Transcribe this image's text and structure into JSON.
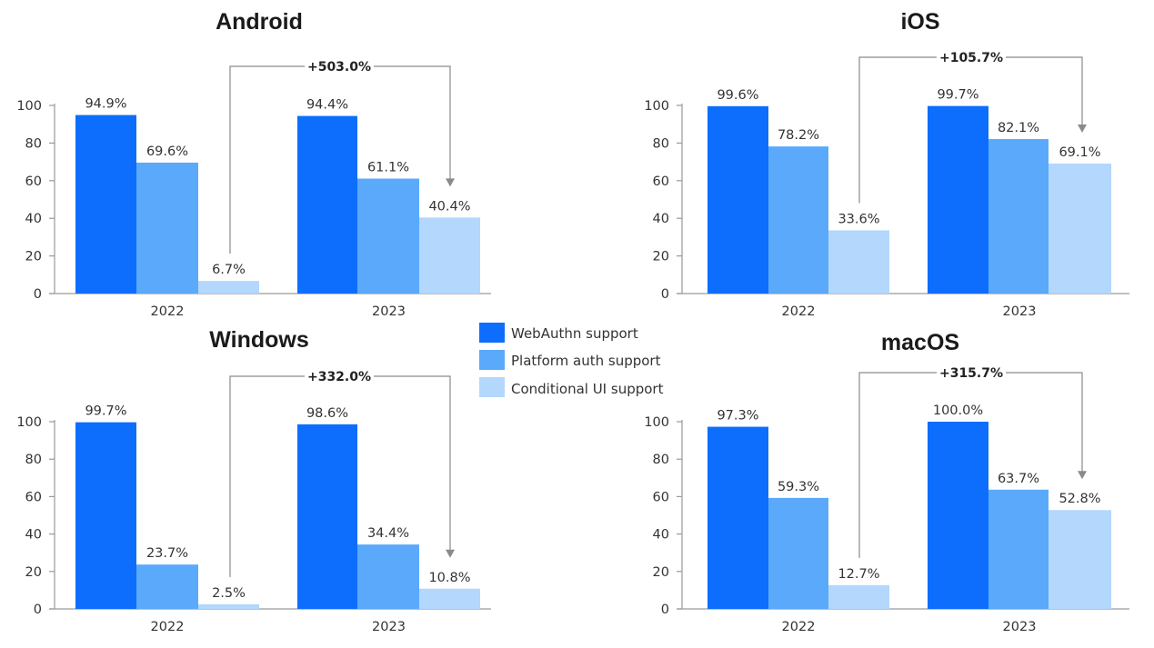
{
  "chart_data": [
    {
      "type": "bar",
      "title": "Android",
      "categories": [
        "2022",
        "2023"
      ],
      "series": [
        {
          "name": "WebAuthn support",
          "values": [
            94.9,
            94.4
          ]
        },
        {
          "name": "Platform auth support",
          "values": [
            69.6,
            61.1
          ]
        },
        {
          "name": "Conditional UI support",
          "values": [
            6.7,
            40.4
          ]
        }
      ],
      "data_labels": [
        [
          "94.9%",
          "69.6%",
          "6.7%"
        ],
        [
          "94.4%",
          "61.1%",
          "40.4%"
        ]
      ],
      "annotation": "+503.0%",
      "yticks": [
        "0",
        "20",
        "40",
        "60",
        "80",
        "100"
      ],
      "ylim": [
        0,
        100
      ],
      "xlabel": "",
      "ylabel": "",
      "grid": false
    },
    {
      "type": "bar",
      "title": "iOS",
      "categories": [
        "2022",
        "2023"
      ],
      "series": [
        {
          "name": "WebAuthn support",
          "values": [
            99.6,
            99.7
          ]
        },
        {
          "name": "Platform auth support",
          "values": [
            78.2,
            82.1
          ]
        },
        {
          "name": "Conditional UI support",
          "values": [
            33.6,
            69.1
          ]
        }
      ],
      "data_labels": [
        [
          "99.6%",
          "78.2%",
          "33.6%"
        ],
        [
          "99.7%",
          "82.1%",
          "69.1%"
        ]
      ],
      "annotation": "+105.7%",
      "yticks": [
        "0",
        "20",
        "40",
        "60",
        "80",
        "100"
      ],
      "ylim": [
        0,
        100
      ],
      "xlabel": "",
      "ylabel": "",
      "grid": false
    },
    {
      "type": "bar",
      "title": "Windows",
      "categories": [
        "2022",
        "2023"
      ],
      "series": [
        {
          "name": "WebAuthn support",
          "values": [
            99.7,
            98.6
          ]
        },
        {
          "name": "Platform auth support",
          "values": [
            23.7,
            34.4
          ]
        },
        {
          "name": "Conditional UI support",
          "values": [
            2.5,
            10.8
          ]
        }
      ],
      "data_labels": [
        [
          "99.7%",
          "23.7%",
          "2.5%"
        ],
        [
          "98.6%",
          "34.4%",
          "10.8%"
        ]
      ],
      "annotation": "+332.0%",
      "yticks": [
        "0",
        "20",
        "40",
        "60",
        "80",
        "100"
      ],
      "ylim": [
        0,
        100
      ],
      "xlabel": "",
      "ylabel": "",
      "grid": false
    },
    {
      "type": "bar",
      "title": "macOS",
      "categories": [
        "2022",
        "2023"
      ],
      "series": [
        {
          "name": "WebAuthn support",
          "values": [
            97.3,
            100.0
          ]
        },
        {
          "name": "Platform auth support",
          "values": [
            59.3,
            63.7
          ]
        },
        {
          "name": "Conditional UI support",
          "values": [
            12.7,
            52.8
          ]
        }
      ],
      "data_labels": [
        [
          "97.3%",
          "59.3%",
          "12.7%"
        ],
        [
          "100.0%",
          "63.7%",
          "52.8%"
        ]
      ],
      "annotation": "+315.7%",
      "yticks": [
        "0",
        "20",
        "40",
        "60",
        "80",
        "100"
      ],
      "ylim": [
        0,
        100
      ],
      "xlabel": "",
      "ylabel": "",
      "grid": false
    }
  ],
  "legend": {
    "placement": "center",
    "items": [
      {
        "label": "WebAuthn support",
        "color": "#0d6efd"
      },
      {
        "label": "Platform auth support",
        "color": "#5aa9fb"
      },
      {
        "label": "Conditional UI support",
        "color": "#b3d7fd"
      }
    ]
  },
  "colors": {
    "series": [
      "#0d6efd",
      "#5aa9fb",
      "#b3d7fd"
    ],
    "axis": "#9a9a9a",
    "annotation_line": "#8a8a8a"
  }
}
